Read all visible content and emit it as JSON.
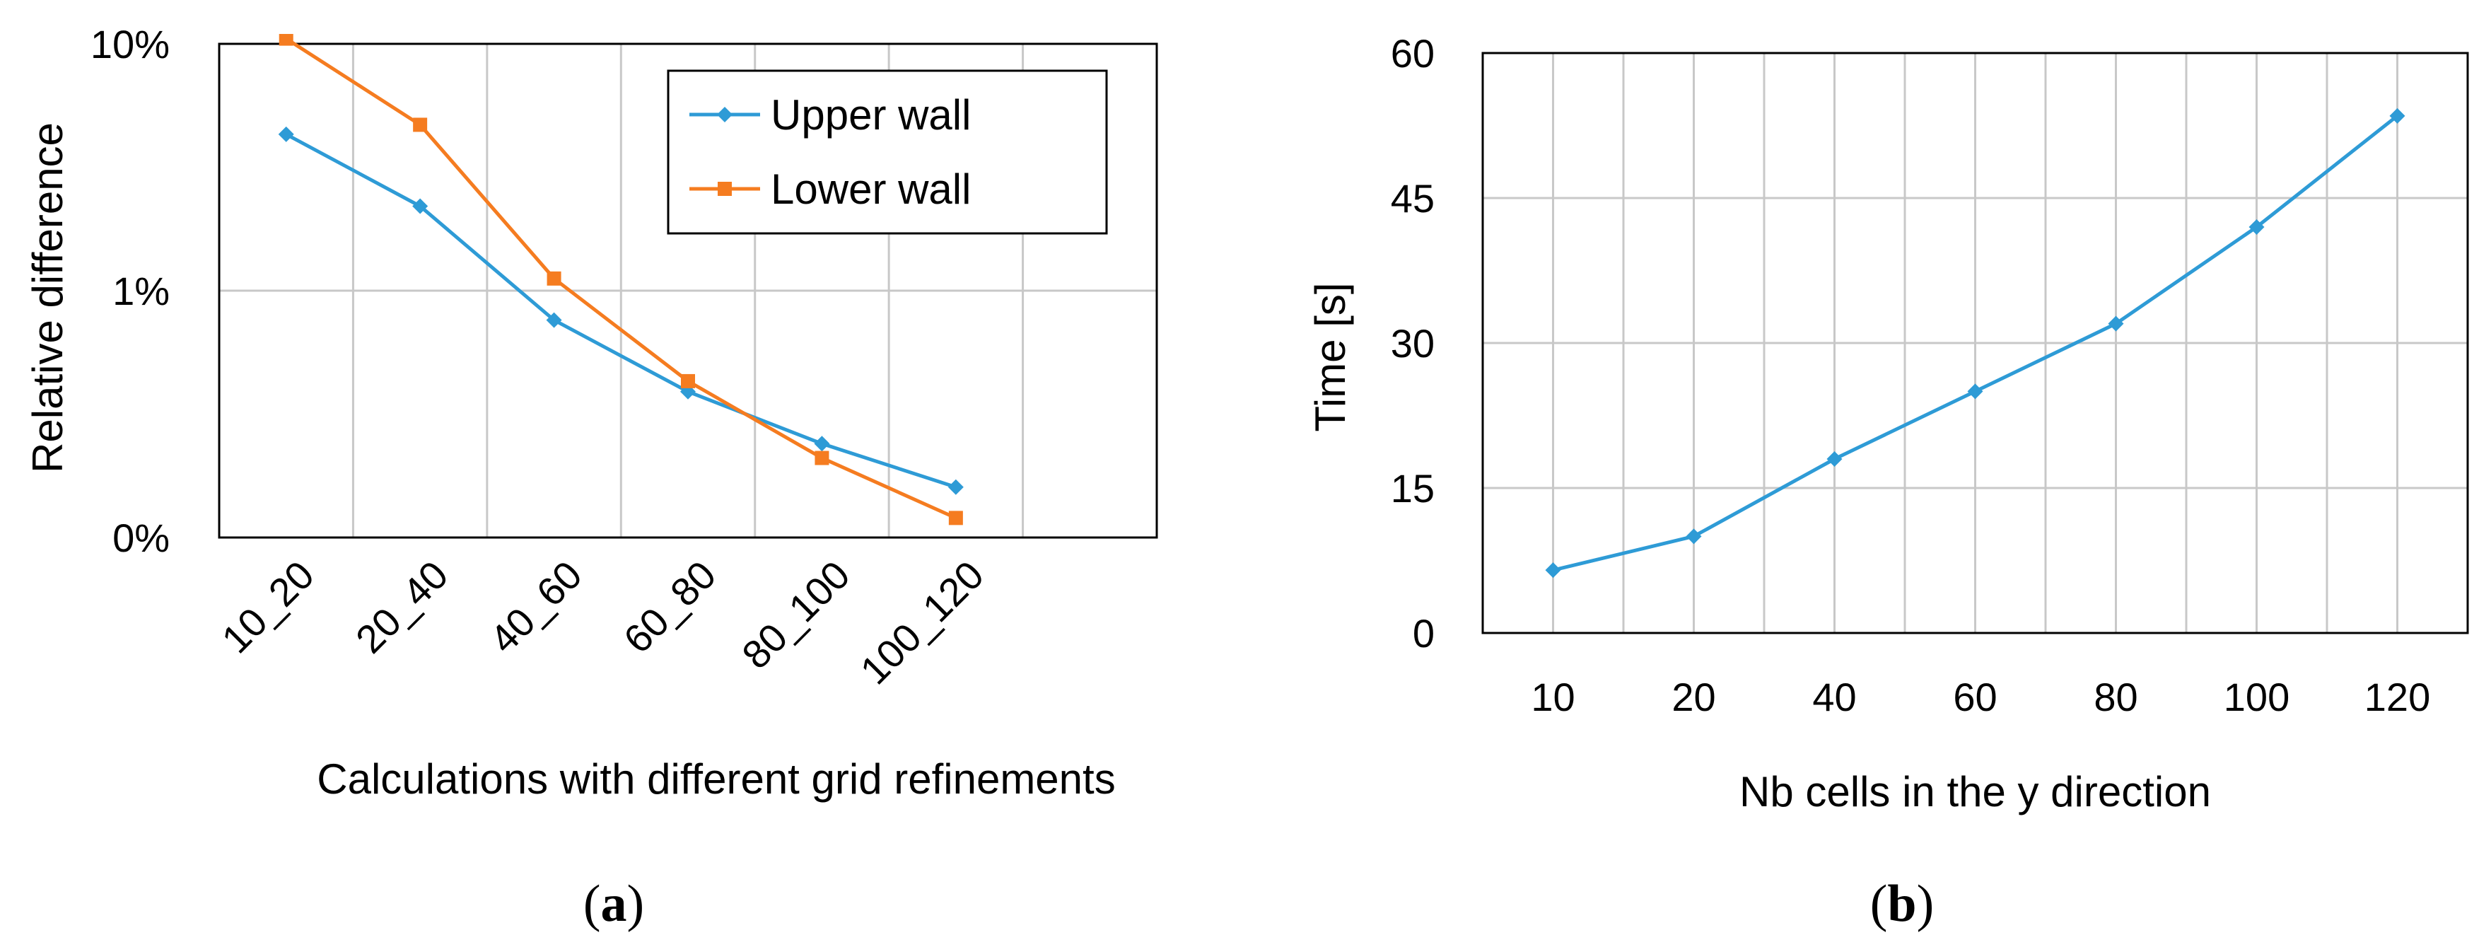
{
  "chart_data": [
    {
      "type": "line",
      "panel_letter": "a",
      "xlabel": "Calculations with different grid refinements",
      "ylabel": "Relative difference",
      "yscale": "log",
      "ylim": [
        0.001,
        0.1
      ],
      "yticks": [
        {
          "value": 0.1,
          "label": "10%"
        },
        {
          "value": 0.01,
          "label": "1%"
        },
        {
          "value": 0.001,
          "label": "0%"
        }
      ],
      "categories": [
        "10_20",
        "20_40",
        "40_60",
        "60_80",
        "80_100",
        "100_120"
      ],
      "grid": true,
      "legend_position": "top-right",
      "series": [
        {
          "name": "Upper wall",
          "color": "#2e9bd6",
          "marker": "diamond",
          "values": [
            0.043,
            0.022,
            0.0076,
            0.0039,
            0.0024,
            0.0016
          ]
        },
        {
          "name": "Lower wall",
          "color": "#f57c20",
          "marker": "square",
          "values": [
            0.105,
            0.047,
            0.0112,
            0.0043,
            0.0021,
            0.0012
          ]
        }
      ]
    },
    {
      "type": "line",
      "panel_letter": "b",
      "xlabel": "Nb cells in the y direction",
      "ylabel": "Time [s]",
      "ylim": [
        0,
        60
      ],
      "yticks": [
        {
          "value": 0,
          "label": "0"
        },
        {
          "value": 15,
          "label": "15"
        },
        {
          "value": 30,
          "label": "30"
        },
        {
          "value": 45,
          "label": "45"
        },
        {
          "value": 60,
          "label": "60"
        }
      ],
      "categories": [
        "10",
        "20",
        "40",
        "60",
        "80",
        "100",
        "120"
      ],
      "grid": true,
      "series": [
        {
          "name": "Time",
          "color": "#2e9bd6",
          "marker": "diamond",
          "values": [
            6.5,
            10,
            18,
            25,
            32,
            42,
            53.5
          ]
        }
      ]
    }
  ]
}
